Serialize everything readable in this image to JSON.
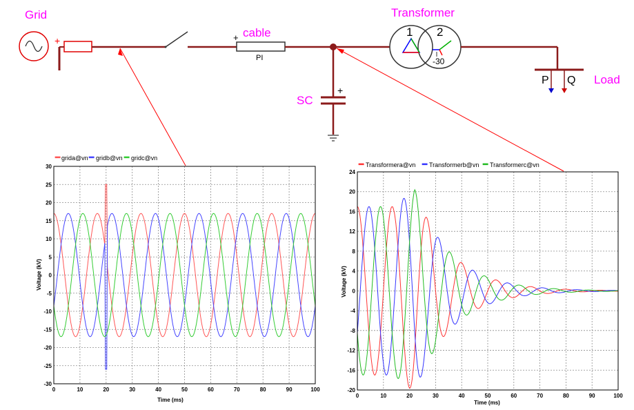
{
  "diagram": {
    "labels": {
      "grid": "Grid",
      "cable": "cable",
      "cable_model": "PI",
      "transformer": "Transformer",
      "winding1": "1",
      "winding2": "2",
      "phase_shift": "-30",
      "sc": "SC",
      "load": "Load",
      "p": "P",
      "q": "Q",
      "plus": "+"
    },
    "colors": {
      "wire": "#8b1a1a",
      "label": "#ff00ff",
      "pointer": "#ff0000",
      "phase_a": "#ff0000",
      "phase_b": "#0000ff",
      "phase_c": "#00b000"
    }
  },
  "chart_data": [
    {
      "type": "line",
      "xlabel": "Time (ms)",
      "ylabel": "Voltage (kV)",
      "xlim": [
        0,
        100
      ],
      "ylim": [
        -30,
        30
      ],
      "xticks": [
        0,
        10,
        20,
        30,
        40,
        50,
        60,
        70,
        80,
        90,
        100
      ],
      "yticks": [
        30,
        25,
        20,
        15,
        10,
        5,
        0,
        -5,
        -10,
        -15,
        -20,
        -25,
        -30
      ],
      "grid": true,
      "legend_position": "top-left",
      "waveform": {
        "amplitude_kv": 17,
        "frequency_hz": 60,
        "damped": false,
        "transient_at_ms": 20,
        "transient_peak_kv": 25,
        "transient_trough_kv": -26
      },
      "series": [
        {
          "name": "grida@vn",
          "color": "#ff5555",
          "phase_deg": 90
        },
        {
          "name": "gridb@vn",
          "color": "#4444ff",
          "phase_deg": -30
        },
        {
          "name": "gridc@vn",
          "color": "#33cc33",
          "phase_deg": 210
        }
      ]
    },
    {
      "type": "line",
      "xlabel": "Time (ms)",
      "ylabel": "Voltage (kV)",
      "xlim": [
        0,
        100
      ],
      "ylim": [
        -20,
        24
      ],
      "xticks": [
        0,
        10,
        20,
        30,
        40,
        50,
        60,
        70,
        80,
        90,
        100
      ],
      "yticks": [
        24,
        20,
        16,
        12,
        8,
        4,
        0,
        -4,
        -8,
        -12,
        -16,
        -20
      ],
      "grid": true,
      "legend_position": "top-left",
      "waveform": {
        "amplitude_kv": 17,
        "frequency_hz": 75,
        "damped": true,
        "decay_after_ms": 22,
        "peak_kv": 20.5,
        "trough_kv": -18.5
      },
      "series": [
        {
          "name": "Transformera@vn",
          "color": "#ff3333",
          "phase_deg": 90
        },
        {
          "name": "Transformerb@vn",
          "color": "#3333ff",
          "phase_deg": -30
        },
        {
          "name": "Transformerc@vn",
          "color": "#22bb22",
          "phase_deg": 210
        }
      ]
    }
  ]
}
